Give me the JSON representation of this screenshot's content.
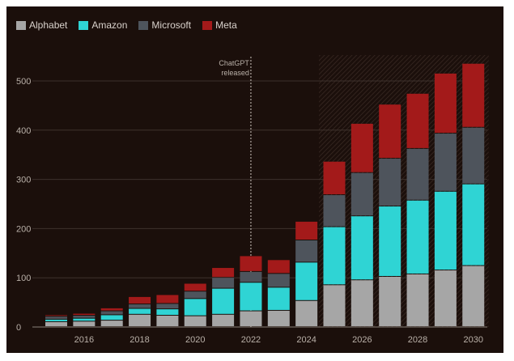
{
  "chart_data": {
    "type": "bar",
    "stacked": true,
    "title": "",
    "xlabel": "",
    "ylabel": "",
    "ylim": [
      0,
      560
    ],
    "yticks": [
      0,
      100,
      200,
      300,
      400,
      500
    ],
    "xticks": [
      2016,
      2018,
      2020,
      2022,
      2024,
      2026,
      2028,
      2030
    ],
    "legend_position": "top-left",
    "grid": true,
    "x": [
      2015,
      2016,
      2017,
      2018,
      2019,
      2020,
      2021,
      2022,
      2023,
      2024,
      2025,
      2026,
      2027,
      2028,
      2029,
      2030
    ],
    "series": [
      {
        "name": "Alphabet",
        "color": "#a6a6a6",
        "values": [
          10,
          11,
          13,
          25,
          23,
          22,
          25,
          32,
          33,
          53,
          85,
          95,
          102,
          107,
          115,
          124
        ]
      },
      {
        "name": "Amazon",
        "color": "#2fd4d4",
        "values": [
          5,
          6,
          11,
          12,
          13,
          35,
          53,
          58,
          47,
          78,
          118,
          130,
          143,
          150,
          160,
          166
        ]
      },
      {
        "name": "Microsoft",
        "color": "#4e545c",
        "values": [
          6,
          6,
          8,
          9,
          11,
          15,
          22,
          22,
          28,
          45,
          65,
          88,
          97,
          105,
          118,
          115
        ]
      },
      {
        "name": "Meta",
        "color": "#a31a1a",
        "values": [
          3,
          4,
          6,
          15,
          18,
          16,
          20,
          32,
          28,
          38,
          68,
          100,
          110,
          112,
          122,
          130
        ]
      }
    ],
    "shaded_region": {
      "from": 2025,
      "to": 2030
    },
    "annotation": {
      "x": 2022,
      "lines": [
        "ChatGPT",
        "released"
      ]
    }
  }
}
